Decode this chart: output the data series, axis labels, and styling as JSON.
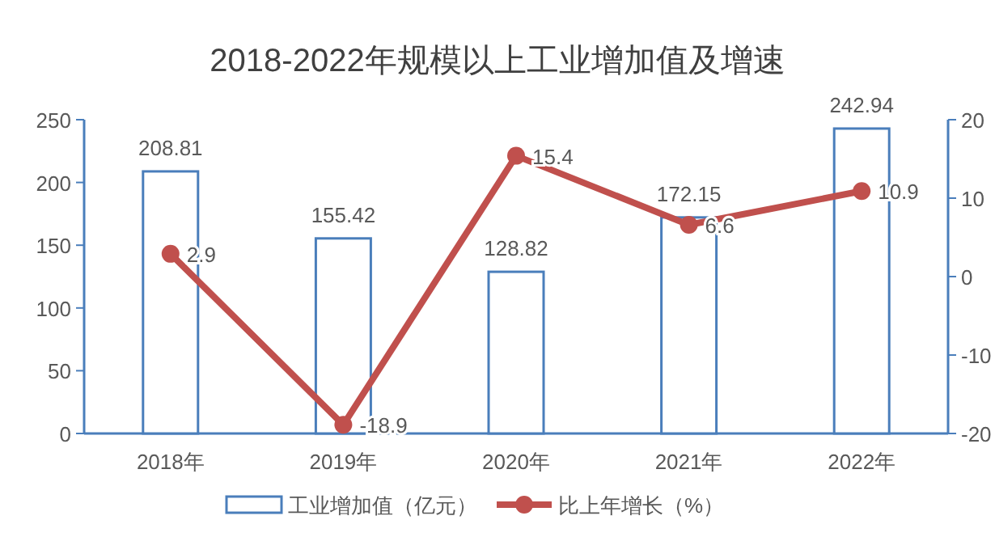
{
  "chart_data": {
    "type": "bar",
    "title": "2018-2022年规模以上工业增加值及增速",
    "categories": [
      "2018年",
      "2019年",
      "2020年",
      "2021年",
      "2022年"
    ],
    "series": [
      {
        "name": "工业增加值（亿元）",
        "color": "#4a7ebb",
        "values": [
          208.81,
          155.42,
          128.82,
          172.15,
          242.94
        ]
      },
      {
        "name": "比上年增长（%）",
        "type": "line",
        "axis": "y2",
        "color": "#c0504d",
        "values": [
          2.9,
          -18.9,
          15.4,
          6.6,
          10.9
        ]
      }
    ],
    "ylim": [
      0,
      250
    ],
    "yticks": [
      0,
      50,
      100,
      150,
      200,
      250
    ],
    "y2lim": [
      -20,
      20
    ],
    "y2ticks": [
      -20,
      -10,
      0,
      10,
      20
    ],
    "data_labels": true,
    "legend": "bottom",
    "marker": "circle",
    "grid": false
  }
}
